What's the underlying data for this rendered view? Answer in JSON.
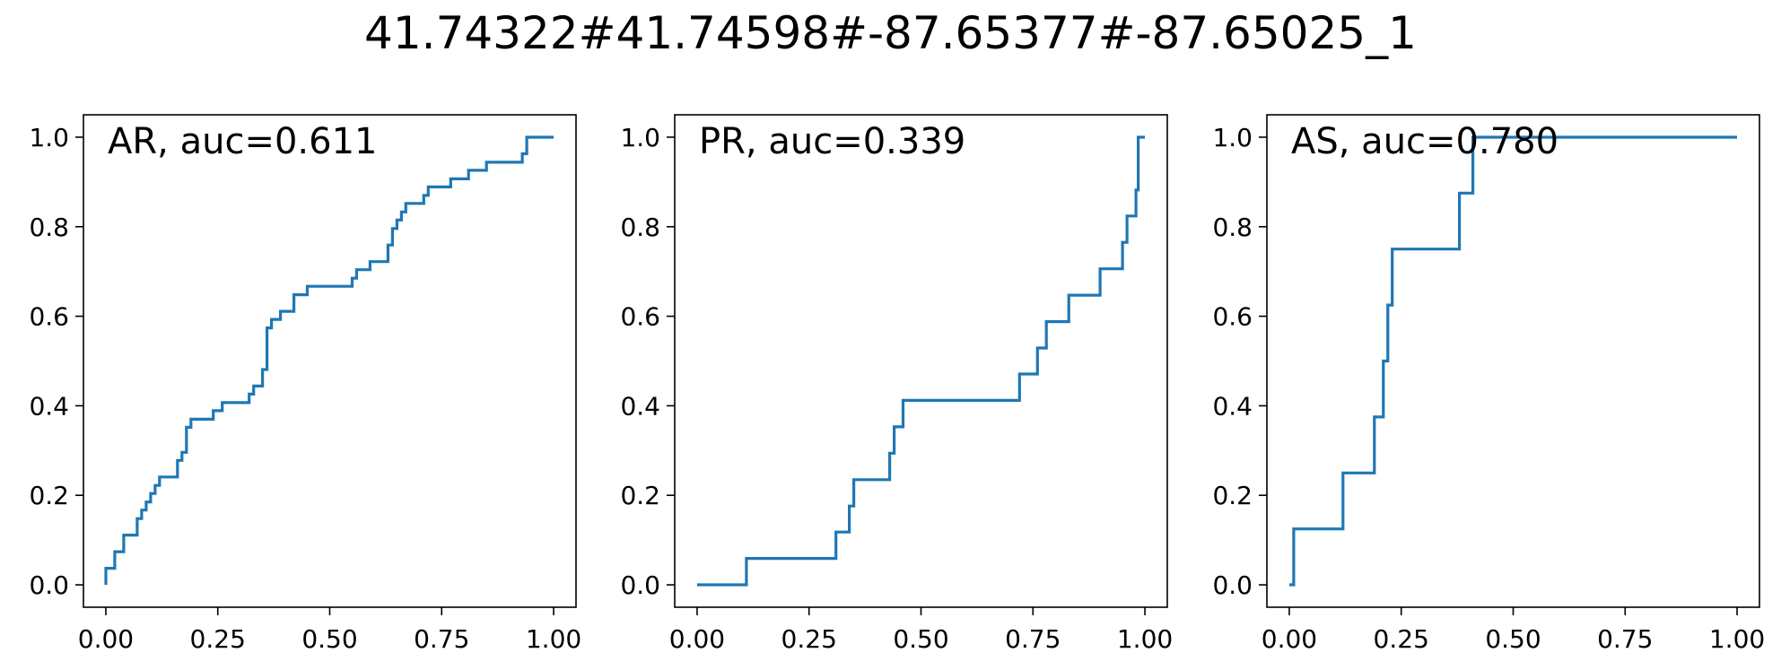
{
  "figure": {
    "title": "41.74322#41.74598#-87.65377#-87.65025_1",
    "line_color": "#1f77b4"
  },
  "chart_data": [
    {
      "type": "line",
      "title": "AR, auc=0.611",
      "xlabel": "",
      "ylabel": "",
      "xlim": [
        -0.05,
        1.05
      ],
      "ylim": [
        -0.05,
        1.05
      ],
      "xticks": [
        "0.00",
        "0.25",
        "0.50",
        "0.75",
        "1.00"
      ],
      "yticks": [
        "0.0",
        "0.2",
        "0.4",
        "0.6",
        "0.8",
        "1.0"
      ],
      "grid": false,
      "series": [
        {
          "x": [
            0.0,
            0.0,
            0.01,
            0.02,
            0.02,
            0.04,
            0.04,
            0.07,
            0.07,
            0.08,
            0.08,
            0.09,
            0.09,
            0.1,
            0.1,
            0.11,
            0.11,
            0.12,
            0.12,
            0.16,
            0.16,
            0.17,
            0.17,
            0.18,
            0.18,
            0.19,
            0.19,
            0.24,
            0.24,
            0.26,
            0.26,
            0.32,
            0.32,
            0.33,
            0.33,
            0.35,
            0.35,
            0.36,
            0.36,
            0.37,
            0.37,
            0.39,
            0.39,
            0.42,
            0.42,
            0.45,
            0.45,
            0.55,
            0.55,
            0.56,
            0.56,
            0.59,
            0.59,
            0.63,
            0.63,
            0.64,
            0.64,
            0.65,
            0.65,
            0.66,
            0.66,
            0.67,
            0.67,
            0.71,
            0.71,
            0.72,
            0.72,
            0.77,
            0.77,
            0.81,
            0.81,
            0.85,
            0.85,
            0.93,
            0.93,
            0.94,
            0.94,
            0.97,
            0.97,
            1.0
          ],
          "y": [
            0.0,
            0.037,
            0.037,
            0.037,
            0.074,
            0.074,
            0.111,
            0.111,
            0.148,
            0.148,
            0.167,
            0.167,
            0.185,
            0.185,
            0.204,
            0.204,
            0.222,
            0.222,
            0.241,
            0.241,
            0.278,
            0.278,
            0.296,
            0.296,
            0.352,
            0.352,
            0.37,
            0.37,
            0.389,
            0.389,
            0.407,
            0.407,
            0.426,
            0.426,
            0.444,
            0.444,
            0.481,
            0.481,
            0.574,
            0.574,
            0.593,
            0.593,
            0.611,
            0.611,
            0.648,
            0.648,
            0.667,
            0.667,
            0.685,
            0.685,
            0.704,
            0.704,
            0.722,
            0.722,
            0.759,
            0.759,
            0.796,
            0.796,
            0.815,
            0.815,
            0.833,
            0.833,
            0.852,
            0.852,
            0.87,
            0.87,
            0.889,
            0.889,
            0.907,
            0.907,
            0.926,
            0.926,
            0.944,
            0.944,
            0.963,
            0.963,
            1.0,
            1.0,
            1.0,
            1.0
          ]
        }
      ]
    },
    {
      "type": "line",
      "title": "PR, auc=0.339",
      "xlabel": "",
      "ylabel": "",
      "xlim": [
        -0.05,
        1.05
      ],
      "ylim": [
        -0.05,
        1.05
      ],
      "xticks": [
        "0.00",
        "0.25",
        "0.50",
        "0.75",
        "1.00"
      ],
      "yticks": [
        "0.0",
        "0.2",
        "0.4",
        "0.6",
        "0.8",
        "1.0"
      ],
      "grid": false,
      "series": [
        {
          "x": [
            0.0,
            0.11,
            0.11,
            0.31,
            0.31,
            0.34,
            0.34,
            0.35,
            0.35,
            0.43,
            0.43,
            0.44,
            0.44,
            0.46,
            0.46,
            0.72,
            0.72,
            0.76,
            0.76,
            0.78,
            0.78,
            0.83,
            0.83,
            0.9,
            0.9,
            0.95,
            0.95,
            0.96,
            0.96,
            0.98,
            0.98,
            0.985,
            0.985,
            1.0
          ],
          "y": [
            0.0,
            0.0,
            0.059,
            0.059,
            0.118,
            0.118,
            0.176,
            0.176,
            0.235,
            0.235,
            0.294,
            0.294,
            0.353,
            0.353,
            0.412,
            0.412,
            0.471,
            0.471,
            0.529,
            0.529,
            0.588,
            0.588,
            0.647,
            0.647,
            0.706,
            0.706,
            0.765,
            0.765,
            0.824,
            0.824,
            0.882,
            0.882,
            1.0,
            1.0
          ]
        }
      ]
    },
    {
      "type": "line",
      "title": "AS, auc=0.780",
      "xlabel": "",
      "ylabel": "",
      "xlim": [
        -0.05,
        1.05
      ],
      "ylim": [
        -0.05,
        1.05
      ],
      "xticks": [
        "0.00",
        "0.25",
        "0.50",
        "0.75",
        "1.00"
      ],
      "yticks": [
        "0.0",
        "0.2",
        "0.4",
        "0.6",
        "0.8",
        "1.0"
      ],
      "grid": false,
      "series": [
        {
          "x": [
            0.0,
            0.01,
            0.01,
            0.12,
            0.12,
            0.19,
            0.19,
            0.21,
            0.21,
            0.22,
            0.22,
            0.23,
            0.23,
            0.38,
            0.38,
            0.41,
            0.41,
            1.0
          ],
          "y": [
            0.0,
            0.0,
            0.125,
            0.125,
            0.25,
            0.25,
            0.375,
            0.375,
            0.5,
            0.5,
            0.625,
            0.625,
            0.75,
            0.75,
            0.875,
            0.875,
            1.0,
            1.0
          ]
        }
      ]
    }
  ]
}
